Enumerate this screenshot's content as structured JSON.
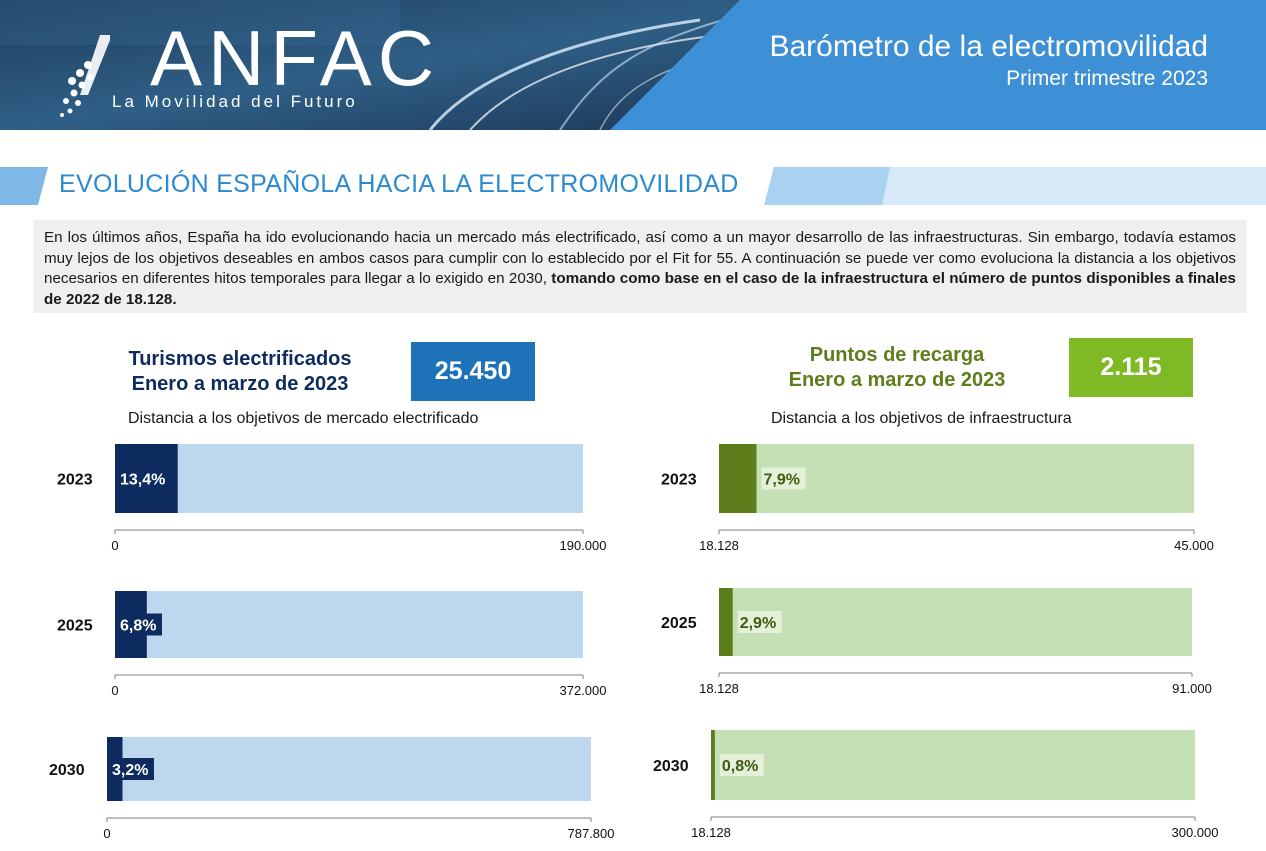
{
  "header": {
    "logo_text": "ANFAC",
    "logo_tagline": "La Movilidad del Futuro",
    "title": "Barómetro de la electromovilidad",
    "subtitle": "Primer trimestre 2023",
    "colors": {
      "banner": "#3d8fd6",
      "accent": "#2b8ad0"
    }
  },
  "section": {
    "title": "EVOLUCIÓN ESPAÑOLA HACIA LA ELECTROMOVILIDAD"
  },
  "intro": {
    "text": "En los últimos años, España ha ido evolucionando hacia un mercado más electrificado, así como a un mayor desarrollo de las infraestructuras. Sin embargo, todavía estamos muy lejos de los objetivos deseables en ambos casos para cumplir con lo establecido por el Fit for 55. A continuación se puede ver como evoluciona la distancia a los objetivos necesarios en diferentes hitos temporales para llegar a lo exigido en 2030, ",
    "bold_text": "tomando como base en el caso de la infraestructura el número de puntos disponibles a finales de 2022 de 18.128."
  },
  "left_panel": {
    "kpi_label_line1": "Turismos electrificados",
    "kpi_label_line2": "Enero a marzo de 2023",
    "kpi_value": "25.450",
    "subtitle": "Distancia a los objetivos de mercado electrificado"
  },
  "right_panel": {
    "kpi_label_line1": "Puntos de recarga",
    "kpi_label_line2": "Enero a marzo de 2023",
    "kpi_value": "2.115",
    "subtitle": "Distancia a los objetivos de infraestructura"
  },
  "chart_data": [
    {
      "type": "bar",
      "orientation": "horizontal",
      "panel": "left",
      "category": "2023",
      "value_percent": 13.4,
      "value_label": "13,4%",
      "axis_min_label": "0",
      "axis_max_label": "190.000",
      "colors": {
        "fill": "#0d2b5e",
        "track": "#bdd7ee"
      }
    },
    {
      "type": "bar",
      "orientation": "horizontal",
      "panel": "left",
      "category": "2025",
      "value_percent": 6.8,
      "value_label": "6,8%",
      "axis_min_label": "0",
      "axis_max_label": "372.000",
      "colors": {
        "fill": "#0d2b5e",
        "track": "#bdd7ee"
      }
    },
    {
      "type": "bar",
      "orientation": "horizontal",
      "panel": "left",
      "category": "2030",
      "value_percent": 3.2,
      "value_label": "3,2%",
      "axis_min_label": "0",
      "axis_max_label": "787.800",
      "colors": {
        "fill": "#0d2b5e",
        "track": "#bdd7ee"
      }
    },
    {
      "type": "bar",
      "orientation": "horizontal",
      "panel": "right",
      "category": "2023",
      "value_percent": 7.9,
      "value_label": "7,9%",
      "axis_min_label": "18.128",
      "axis_max_label": "45.000",
      "colors": {
        "fill": "#5e7e1c",
        "track": "#c5e0b4"
      }
    },
    {
      "type": "bar",
      "orientation": "horizontal",
      "panel": "right",
      "category": "2025",
      "value_percent": 2.9,
      "value_label": "2,9%",
      "axis_min_label": "18.128",
      "axis_max_label": "91.000",
      "colors": {
        "fill": "#5e7e1c",
        "track": "#c5e0b4"
      }
    },
    {
      "type": "bar",
      "orientation": "horizontal",
      "panel": "right",
      "category": "2030",
      "value_percent": 0.8,
      "value_label": "0,8%",
      "axis_min_label": "18.128",
      "axis_max_label": "300.000",
      "colors": {
        "fill": "#5e7e1c",
        "track": "#c5e0b4"
      }
    }
  ]
}
